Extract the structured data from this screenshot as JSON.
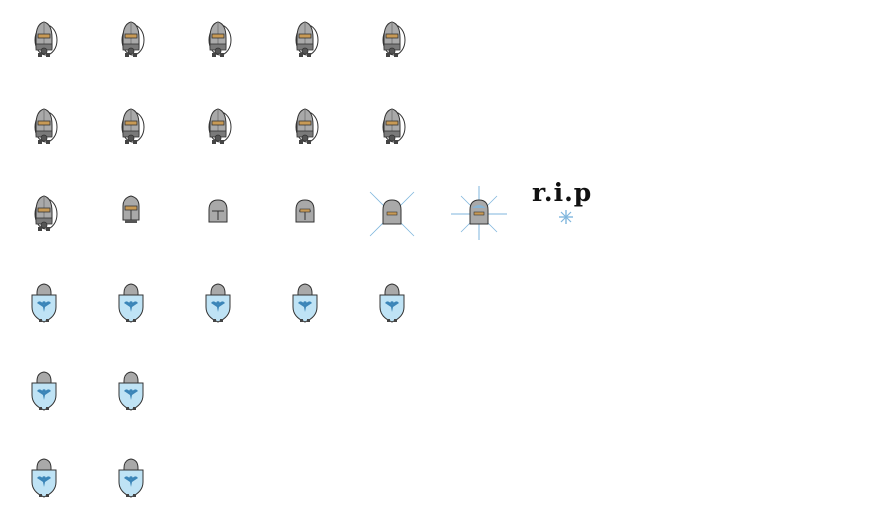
{
  "sheet": {
    "background": "#ffffff",
    "rip_text": "r.i.p",
    "colors": {
      "helmet_grey": "#a9a9a9",
      "helmet_shadow": "#7a7a7a",
      "outline": "#333333",
      "visor": "#c89a55",
      "shield_blue": "#bfe3f5",
      "shield_emblem": "#3b85b8",
      "glow": "#7fb6dd"
    },
    "rows": [
      {
        "name": "knight-idle-right",
        "sprites": [
          {
            "kind": "knight",
            "facing": "right"
          },
          {
            "kind": "knight",
            "facing": "right"
          },
          {
            "kind": "knight",
            "facing": "right"
          },
          {
            "kind": "knight",
            "facing": "right"
          },
          {
            "kind": "knight",
            "facing": "right"
          }
        ]
      },
      {
        "name": "knight-walk-right",
        "sprites": [
          {
            "kind": "knight",
            "facing": "right"
          },
          {
            "kind": "knight",
            "facing": "right"
          },
          {
            "kind": "knight",
            "facing": "right"
          },
          {
            "kind": "knight",
            "facing": "right"
          },
          {
            "kind": "knight",
            "facing": "right"
          }
        ]
      },
      {
        "name": "knight-death",
        "sprites": [
          {
            "kind": "knight",
            "facing": "right"
          },
          {
            "kind": "helmet-small",
            "facing": "front"
          },
          {
            "kind": "tombstone",
            "facing": "front"
          },
          {
            "kind": "tombstone-cracked",
            "facing": "front"
          },
          {
            "kind": "tombstone-glow",
            "facing": "front"
          },
          {
            "kind": "tombstone-glow-strong",
            "facing": "front"
          }
        ]
      },
      {
        "name": "shield-knight-idle",
        "sprites": [
          {
            "kind": "shield-knight",
            "facing": "front"
          },
          {
            "kind": "shield-knight",
            "facing": "front"
          },
          {
            "kind": "shield-knight",
            "facing": "front"
          },
          {
            "kind": "shield-knight",
            "facing": "front"
          },
          {
            "kind": "shield-knight",
            "facing": "front"
          }
        ]
      },
      {
        "name": "shield-knight-walk",
        "sprites": [
          {
            "kind": "shield-knight",
            "facing": "front"
          },
          {
            "kind": "shield-knight",
            "facing": "front"
          }
        ]
      },
      {
        "name": "shield-knight-hit",
        "sprites": [
          {
            "kind": "shield-knight",
            "facing": "front"
          },
          {
            "kind": "shield-knight",
            "facing": "front"
          }
        ]
      }
    ]
  }
}
